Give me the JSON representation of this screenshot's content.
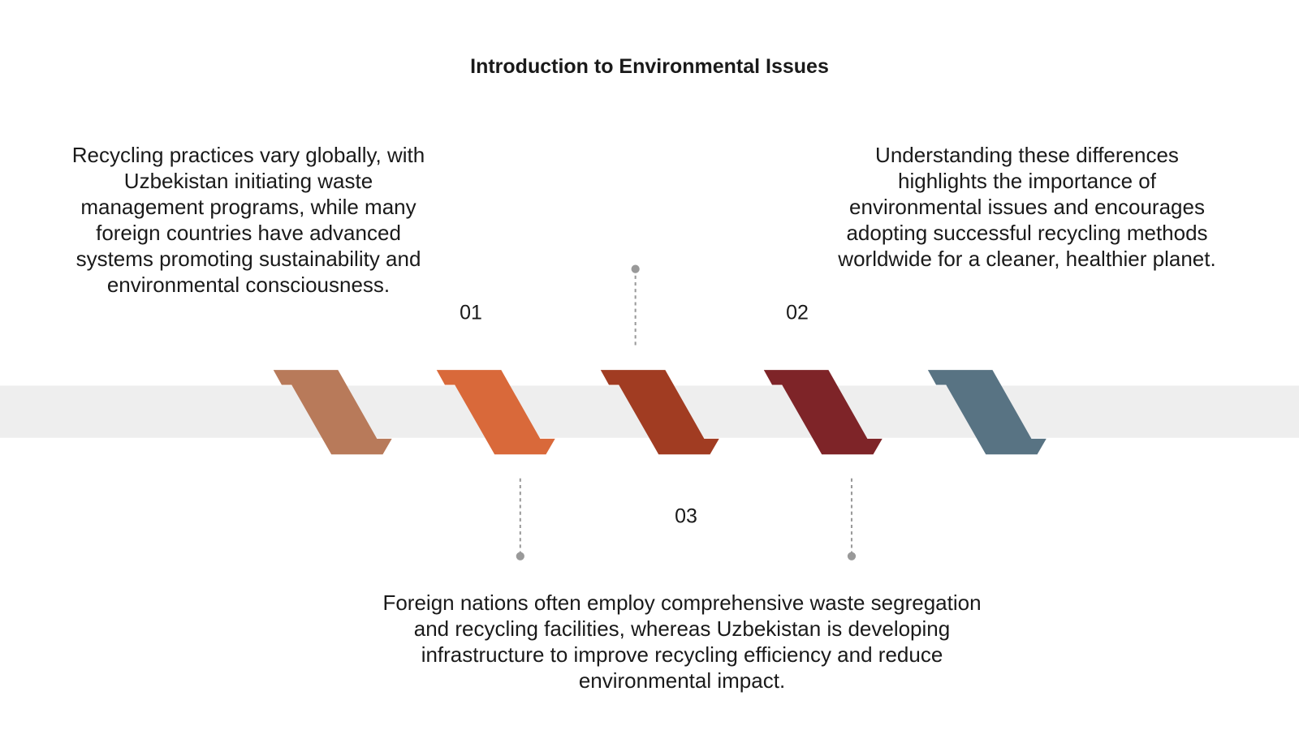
{
  "title": "Introduction to Environmental Issues",
  "items": [
    {
      "number": "01",
      "text": "Recycling practices vary globally, with Uzbekistan initiating waste management programs, while many foreign countries have advanced systems promoting sustainability and environmental consciousness."
    },
    {
      "number": "02",
      "text": "Understanding these differences highlights the importance of environmental issues and encourages adopting successful recycling methods worldwide for a cleaner, healthier planet."
    },
    {
      "number": "03",
      "text": "Foreign nations often employ comprehensive waste segregation and recycling facilities, whereas Uzbekistan is developing infrastructure to improve recycling efficiency and reduce environmental impact."
    }
  ]
}
